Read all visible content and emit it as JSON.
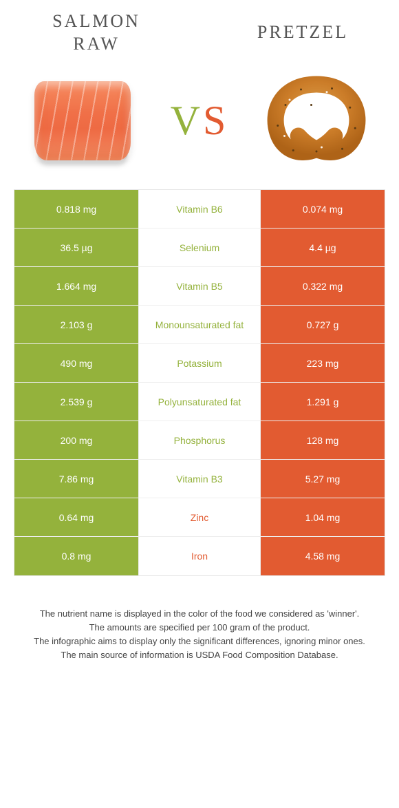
{
  "colors": {
    "left": "#94b23c",
    "right": "#e25b31",
    "pretzel_fill": "#d8872f",
    "pretzel_stroke": "#a85f18",
    "salmon_top": "#f68a5e",
    "salmon_mid": "#ee6a43"
  },
  "header": {
    "left_title": "Salmon\nraw",
    "right_title": "Pretzel",
    "vs_v": "V",
    "vs_s": "S"
  },
  "rows": [
    {
      "nutrient": "Vitamin B6",
      "left": "0.818 mg",
      "right": "0.074 mg",
      "winner": "left"
    },
    {
      "nutrient": "Selenium",
      "left": "36.5 µg",
      "right": "4.4 µg",
      "winner": "left"
    },
    {
      "nutrient": "Vitamin B5",
      "left": "1.664 mg",
      "right": "0.322 mg",
      "winner": "left"
    },
    {
      "nutrient": "Monounsaturated fat",
      "left": "2.103 g",
      "right": "0.727 g",
      "winner": "left"
    },
    {
      "nutrient": "Potassium",
      "left": "490 mg",
      "right": "223 mg",
      "winner": "left"
    },
    {
      "nutrient": "Polyunsaturated fat",
      "left": "2.539 g",
      "right": "1.291 g",
      "winner": "left"
    },
    {
      "nutrient": "Phosphorus",
      "left": "200 mg",
      "right": "128 mg",
      "winner": "left"
    },
    {
      "nutrient": "Vitamin B3",
      "left": "7.86 mg",
      "right": "5.27 mg",
      "winner": "left"
    },
    {
      "nutrient": "Zinc",
      "left": "0.64 mg",
      "right": "1.04 mg",
      "winner": "right"
    },
    {
      "nutrient": "Iron",
      "left": "0.8 mg",
      "right": "4.58 mg",
      "winner": "right"
    }
  ],
  "footer": {
    "line1": "The nutrient name is displayed in the color of the food we considered as 'winner'.",
    "line2": "The amounts are specified per 100 gram of the product.",
    "line3": "The infographic aims to display only the significant differences, ignoring minor ones.",
    "line4": "The main source of information is USDA Food Composition Database."
  }
}
